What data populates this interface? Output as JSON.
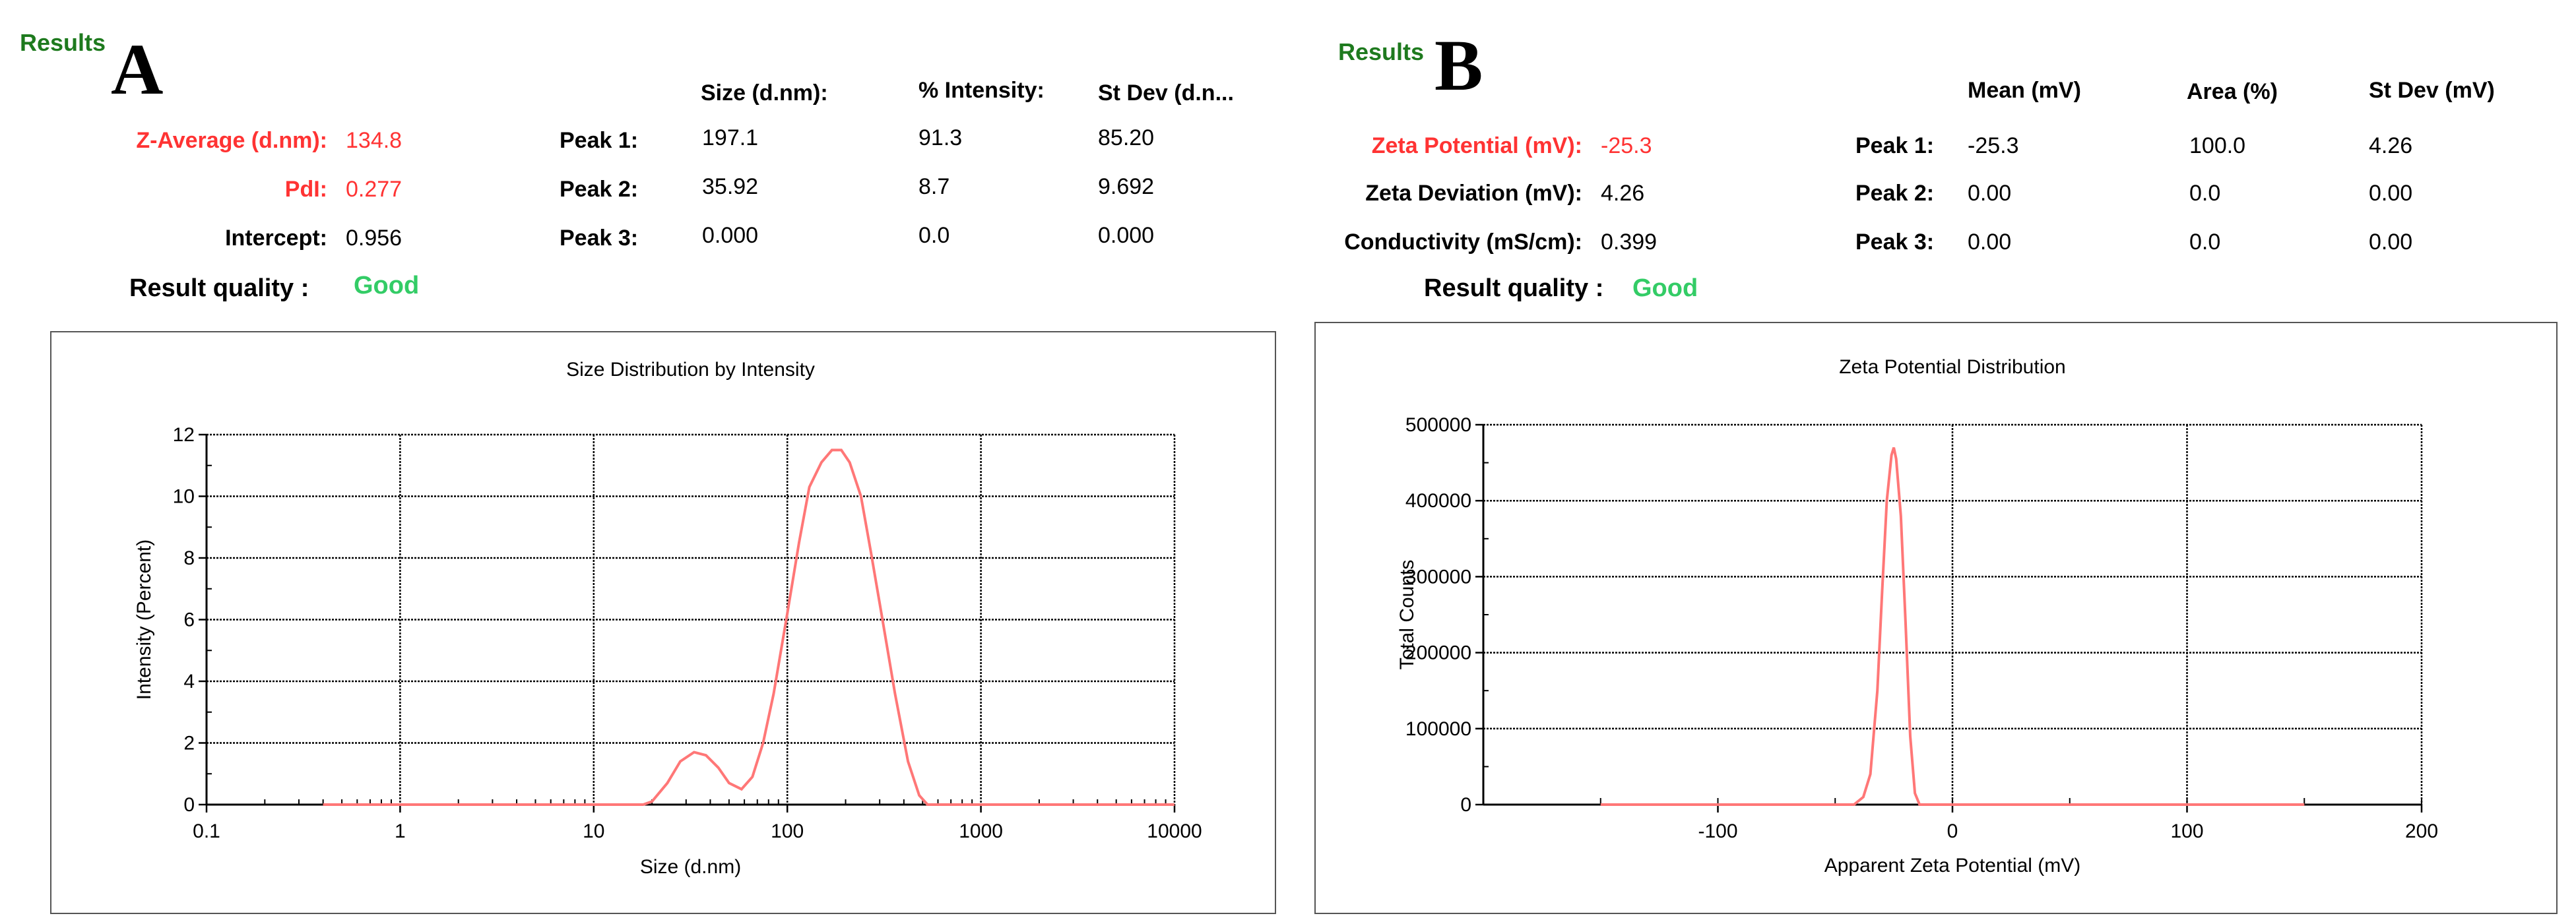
{
  "panel_a": {
    "results_title": "Results",
    "panel_letter": "A",
    "headers": [
      "Size (d.nm):",
      "% Intensity:",
      "St Dev (d.n..."
    ],
    "summary": [
      {
        "label": "Z-Average (d.nm):",
        "value": "134.8",
        "color": "#ff3333"
      },
      {
        "label": "PdI:",
        "value": "0.277",
        "color": "#ff3333"
      },
      {
        "label": "Intercept:",
        "value": "0.956",
        "color": "#000000"
      }
    ],
    "peaks": [
      {
        "label": "Peak 1:",
        "cols": [
          "197.1",
          "91.3",
          "85.20"
        ]
      },
      {
        "label": "Peak 2:",
        "cols": [
          "35.92",
          "8.7",
          "9.692"
        ]
      },
      {
        "label": "Peak 3:",
        "cols": [
          "0.000",
          "0.0",
          "0.000"
        ]
      }
    ],
    "quality_label": "Result quality :",
    "quality_value": "Good"
  },
  "panel_b": {
    "results_title": "Results",
    "panel_letter": "B",
    "headers": [
      "Mean (mV)",
      "Area (%)",
      "St Dev (mV)"
    ],
    "summary": [
      {
        "label": "Zeta Potential (mV):",
        "value": "-25.3",
        "color": "#ff3333"
      },
      {
        "label": "Zeta Deviation (mV):",
        "value": "4.26",
        "color": "#000000"
      },
      {
        "label": "Conductivity (mS/cm):",
        "value": "0.399",
        "color": "#000000"
      }
    ],
    "peaks": [
      {
        "label": "Peak 1:",
        "cols": [
          "-25.3",
          "100.0",
          "4.26"
        ]
      },
      {
        "label": "Peak 2:",
        "cols": [
          "0.00",
          "0.0",
          "0.00"
        ]
      },
      {
        "label": "Peak 3:",
        "cols": [
          "0.00",
          "0.0",
          "0.00"
        ]
      }
    ],
    "quality_label": "Result quality :",
    "quality_value": "Good"
  },
  "chart_data": [
    {
      "type": "line",
      "title": "Size Distribution by Intensity",
      "xlabel": "Size (d.nm)",
      "ylabel": "Intensity (Percent)",
      "xscale": "log",
      "xlim": [
        0.1,
        10000
      ],
      "ylim": [
        0,
        12
      ],
      "xticks": [
        0.1,
        1,
        10,
        100,
        1000,
        10000
      ],
      "xtick_labels": [
        "0.1",
        "1",
        "10",
        "100",
        "1000",
        "10000"
      ],
      "yticks": [
        0,
        2,
        4,
        6,
        8,
        10,
        12
      ],
      "ytick_labels": [
        "0",
        "2",
        "4",
        "6",
        "8",
        "10",
        "12"
      ],
      "grid": true,
      "line_color": "#ff7777",
      "series": [
        {
          "x": [
            0.4,
            1,
            10,
            18,
            20,
            24,
            28,
            33,
            38,
            44,
            50,
            58,
            66,
            75,
            85,
            100,
            115,
            130,
            150,
            170,
            190,
            210,
            240,
            270,
            310,
            360,
            420,
            480,
            530,
            600,
            1000,
            10000
          ],
          "y": [
            0,
            0,
            0,
            0,
            0.1,
            0.7,
            1.4,
            1.7,
            1.6,
            1.2,
            0.7,
            0.5,
            0.9,
            2.0,
            3.6,
            6.2,
            8.5,
            10.3,
            11.1,
            11.5,
            11.5,
            11.1,
            10.0,
            8.2,
            6.0,
            3.6,
            1.4,
            0.3,
            0,
            0,
            0,
            0
          ]
        }
      ]
    },
    {
      "type": "line",
      "title": "Zeta Potential Distribution",
      "xlabel": "Apparent Zeta Potential (mV)",
      "ylabel": "Total Counts",
      "xlim": [
        -200,
        200
      ],
      "ylim": [
        0,
        500000
      ],
      "xticks": [
        -100,
        0,
        100,
        200
      ],
      "xtick_labels": [
        "-100",
        "0",
        "100",
        "200"
      ],
      "yticks": [
        0,
        100000,
        200000,
        300000,
        400000,
        500000
      ],
      "ytick_labels": [
        "0",
        "100000",
        "200000",
        "300000",
        "400000",
        "500000"
      ],
      "grid": true,
      "line_color": "#ff7777",
      "series": [
        {
          "x": [
            -150,
            -42,
            -38,
            -35,
            -32,
            -30,
            -28,
            -26,
            -25,
            -24,
            -22,
            -20,
            -18,
            -16,
            -14,
            150
          ],
          "y": [
            0,
            0,
            10000,
            40000,
            150000,
            280000,
            400000,
            460000,
            470000,
            455000,
            380000,
            240000,
            90000,
            15000,
            0,
            0
          ]
        }
      ]
    }
  ]
}
